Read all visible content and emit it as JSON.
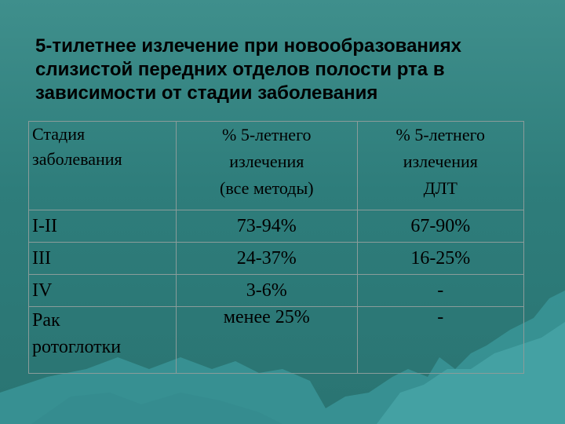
{
  "title": "5-тилетнее излечение при новообразованиях слизистой передних отделов полости рта в зависимости от стадии заболевания",
  "table": {
    "headers": [
      "Стадия\nзаболевания",
      "% 5-летнего\nизлечения\n(все методы)",
      "% 5-летнего\nизлечения\nДЛТ"
    ],
    "rows": [
      [
        "I-II",
        "73-94%",
        "67-90%"
      ],
      [
        "III",
        "24-37%",
        "16-25%"
      ],
      [
        "IV",
        "3-6%",
        "-"
      ],
      [
        "Рак\nротоглотки",
        "менее 25%",
        "-"
      ]
    ]
  },
  "colors": {
    "background": "#2e7d7b",
    "mountains": "#3c9a9c",
    "text": "#000000"
  }
}
